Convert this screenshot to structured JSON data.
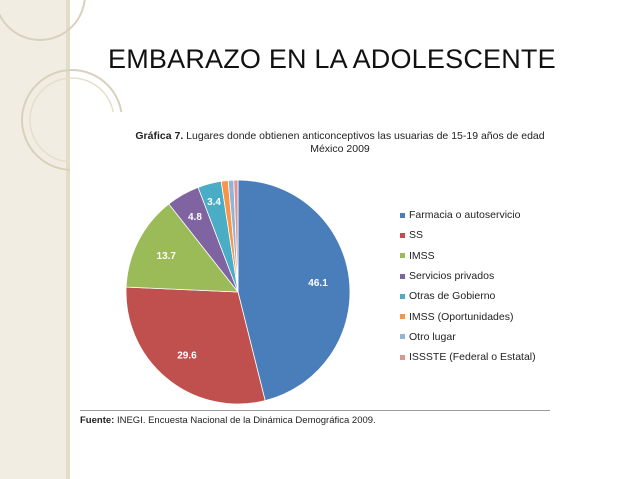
{
  "slide": {
    "title": "EMBARAZO EN LA ADOLESCENTE"
  },
  "chart_data": {
    "type": "pie",
    "title_bold": "Gráfica 7.",
    "title": "Lugares donde obtienen anticonceptivos las usuarias de 15-19 años de edad",
    "subtitle": "México 2009",
    "slices": [
      {
        "label": "Farmacia o autoservicio",
        "value": 46.1,
        "color": "#4a7ebb",
        "data_label": "46.1"
      },
      {
        "label": "SS",
        "value": 29.6,
        "color": "#c0504d",
        "data_label": "29.6"
      },
      {
        "label": "IMSS",
        "value": 13.7,
        "color": "#9bbb59",
        "data_label": "13.7"
      },
      {
        "label": "Servicios privados",
        "value": 4.8,
        "color": "#8064a2",
        "data_label": "4.8"
      },
      {
        "label": "Otras de Gobierno",
        "value": 3.4,
        "color": "#4bacc6",
        "data_label": "3.4"
      },
      {
        "label": "IMSS (Oportunidades)",
        "value": 1.0,
        "color": "#f79646",
        "data_label": ""
      },
      {
        "label": "Otro lugar",
        "value": 0.8,
        "color": "#95b3d7",
        "data_label": ""
      },
      {
        "label": "ISSSTE (Federal o Estatal)",
        "value": 0.6,
        "color": "#d99694",
        "data_label": ""
      }
    ],
    "legend_position": "right",
    "source_bold": "Fuente:",
    "source": "INEGI. Encuesta Nacional de la Dinámica Demográfica 2009."
  }
}
